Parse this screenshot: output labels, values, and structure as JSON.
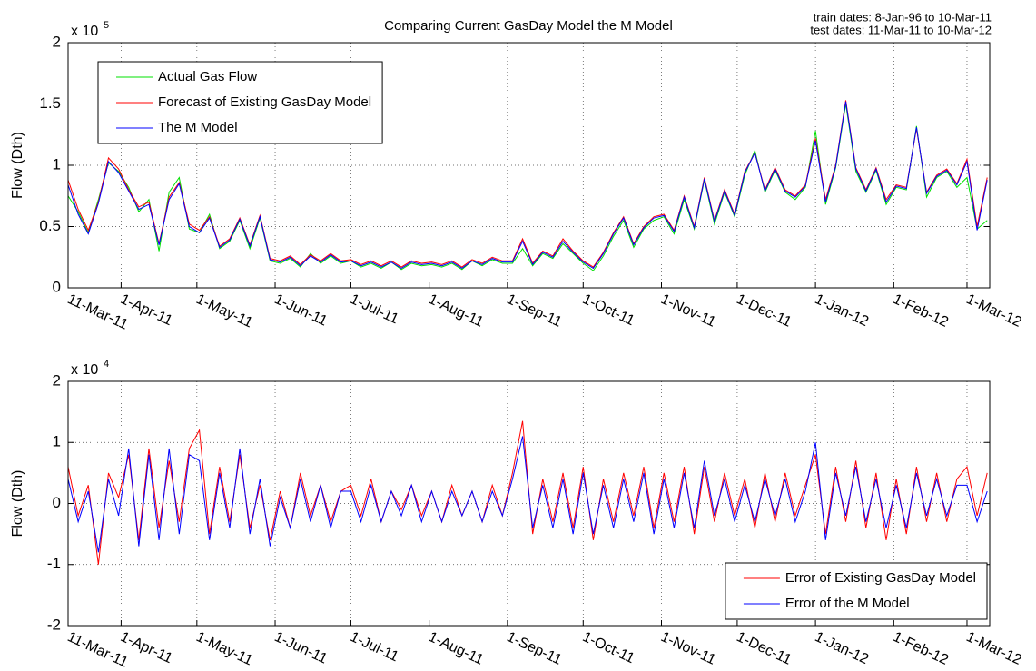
{
  "chart_data": [
    {
      "type": "line",
      "title": "Comparing Current GasDay Model the M Model",
      "annotations": [
        "train dates:   8-Jan-96 to 10-Mar-11",
        "test dates:   11-Mar-11 to 10-Mar-12"
      ],
      "y_label": "Flow (Dth)",
      "y_multiplier": {
        "base": "x 10",
        "exponent": "5"
      },
      "x": [
        "11-Mar-11",
        "15-Mar-11",
        "19-Mar-11",
        "23-Mar-11",
        "27-Mar-11",
        "31-Mar-11",
        "4-Apr-11",
        "8-Apr-11",
        "12-Apr-11",
        "16-Apr-11",
        "20-Apr-11",
        "24-Apr-11",
        "28-Apr-11",
        "2-May-11",
        "6-May-11",
        "10-May-11",
        "14-May-11",
        "18-May-11",
        "22-May-11",
        "26-May-11",
        "30-May-11",
        "3-Jun-11",
        "7-Jun-11",
        "11-Jun-11",
        "15-Jun-11",
        "19-Jun-11",
        "23-Jun-11",
        "27-Jun-11",
        "1-Jul-11",
        "5-Jul-11",
        "9-Jul-11",
        "13-Jul-11",
        "17-Jul-11",
        "21-Jul-11",
        "25-Jul-11",
        "29-Jul-11",
        "2-Aug-11",
        "6-Aug-11",
        "10-Aug-11",
        "14-Aug-11",
        "18-Aug-11",
        "22-Aug-11",
        "26-Aug-11",
        "30-Aug-11",
        "3-Sep-11",
        "7-Sep-11",
        "11-Sep-11",
        "15-Sep-11",
        "19-Sep-11",
        "23-Sep-11",
        "27-Sep-11",
        "1-Oct-11",
        "5-Oct-11",
        "9-Oct-11",
        "13-Oct-11",
        "17-Oct-11",
        "21-Oct-11",
        "25-Oct-11",
        "29-Oct-11",
        "2-Nov-11",
        "6-Nov-11",
        "10-Nov-11",
        "14-Nov-11",
        "18-Nov-11",
        "22-Nov-11",
        "26-Nov-11",
        "30-Nov-11",
        "4-Dec-11",
        "8-Dec-11",
        "12-Dec-11",
        "16-Dec-11",
        "20-Dec-11",
        "24-Dec-11",
        "28-Dec-11",
        "1-Jan-12",
        "5-Jan-12",
        "9-Jan-12",
        "13-Jan-12",
        "17-Jan-12",
        "21-Jan-12",
        "25-Jan-12",
        "29-Jan-12",
        "2-Feb-12",
        "6-Feb-12",
        "10-Feb-12",
        "14-Feb-12",
        "18-Feb-12",
        "22-Feb-12",
        "26-Feb-12",
        "1-Mar-12",
        "5-Mar-12",
        "9-Mar-12"
      ],
      "series": [
        {
          "name": "Actual Gas Flow",
          "color": "#00e000",
          "values": [
            0.75,
            0.62,
            0.45,
            0.72,
            1.02,
            0.95,
            0.82,
            0.62,
            0.72,
            0.3,
            0.78,
            0.9,
            0.48,
            0.45,
            0.6,
            0.32,
            0.38,
            0.55,
            0.32,
            0.57,
            0.22,
            0.2,
            0.24,
            0.17,
            0.28,
            0.2,
            0.26,
            0.2,
            0.22,
            0.17,
            0.2,
            0.16,
            0.21,
            0.15,
            0.2,
            0.18,
            0.19,
            0.17,
            0.2,
            0.15,
            0.22,
            0.18,
            0.23,
            0.2,
            0.2,
            0.32,
            0.18,
            0.28,
            0.24,
            0.36,
            0.28,
            0.2,
            0.14,
            0.26,
            0.42,
            0.55,
            0.33,
            0.48,
            0.55,
            0.58,
            0.44,
            0.72,
            0.48,
            0.88,
            0.52,
            0.78,
            0.58,
            0.92,
            1.12,
            0.78,
            0.96,
            0.78,
            0.72,
            0.82,
            1.28,
            0.68,
            0.98,
            1.5,
            0.95,
            0.78,
            0.96,
            0.68,
            0.82,
            0.8,
            1.32,
            0.74,
            0.9,
            0.95,
            0.82,
            0.9,
            0.48,
            0.55
          ]
        },
        {
          "name": "Forecast of Existing GasDay Model",
          "color": "#ff0000",
          "values": [
            0.88,
            0.64,
            0.47,
            0.7,
            1.06,
            0.97,
            0.8,
            0.66,
            0.7,
            0.36,
            0.74,
            0.86,
            0.52,
            0.47,
            0.58,
            0.34,
            0.4,
            0.57,
            0.35,
            0.59,
            0.24,
            0.22,
            0.26,
            0.19,
            0.27,
            0.22,
            0.28,
            0.22,
            0.23,
            0.19,
            0.22,
            0.18,
            0.22,
            0.17,
            0.22,
            0.2,
            0.21,
            0.19,
            0.22,
            0.17,
            0.23,
            0.2,
            0.25,
            0.22,
            0.22,
            0.4,
            0.2,
            0.3,
            0.26,
            0.4,
            0.3,
            0.22,
            0.17,
            0.29,
            0.45,
            0.58,
            0.36,
            0.5,
            0.58,
            0.6,
            0.47,
            0.75,
            0.5,
            0.9,
            0.55,
            0.8,
            0.6,
            0.95,
            1.1,
            0.8,
            0.98,
            0.8,
            0.75,
            0.84,
            1.22,
            0.72,
            1.0,
            1.53,
            0.98,
            0.8,
            0.98,
            0.72,
            0.84,
            0.82,
            1.3,
            0.78,
            0.92,
            0.97,
            0.85,
            1.05,
            0.5,
            0.9
          ]
        },
        {
          "name": "The M Model",
          "color": "#0000ff",
          "values": [
            0.84,
            0.6,
            0.44,
            0.69,
            1.03,
            0.94,
            0.79,
            0.64,
            0.68,
            0.35,
            0.72,
            0.85,
            0.5,
            0.45,
            0.57,
            0.33,
            0.39,
            0.56,
            0.34,
            0.58,
            0.23,
            0.21,
            0.25,
            0.18,
            0.26,
            0.21,
            0.27,
            0.21,
            0.22,
            0.18,
            0.21,
            0.17,
            0.21,
            0.16,
            0.21,
            0.19,
            0.2,
            0.18,
            0.21,
            0.16,
            0.22,
            0.19,
            0.24,
            0.21,
            0.21,
            0.38,
            0.19,
            0.29,
            0.25,
            0.38,
            0.29,
            0.21,
            0.16,
            0.28,
            0.44,
            0.57,
            0.35,
            0.49,
            0.57,
            0.59,
            0.46,
            0.74,
            0.49,
            0.89,
            0.54,
            0.79,
            0.59,
            0.94,
            1.1,
            0.79,
            0.97,
            0.79,
            0.74,
            0.83,
            1.2,
            0.7,
            0.99,
            1.52,
            0.97,
            0.79,
            0.97,
            0.7,
            0.83,
            0.81,
            1.31,
            0.77,
            0.91,
            0.96,
            0.84,
            1.03,
            0.47,
            0.88
          ]
        }
      ],
      "xlim": [
        "11-Mar-11",
        "10-Mar-12"
      ],
      "xticks": [
        "11-Mar-11",
        "1-Apr-11",
        "1-May-11",
        "1-Jun-11",
        "1-Jul-11",
        "1-Aug-11",
        "1-Sep-11",
        "1-Oct-11",
        "1-Nov-11",
        "1-Dec-11",
        "1-Jan-12",
        "1-Feb-12",
        "1-Mar-12"
      ],
      "ylim": [
        0,
        2
      ],
      "yticks": [
        0,
        0.5,
        1,
        1.5,
        2
      ],
      "grid": true,
      "legend": "upper left"
    },
    {
      "type": "line",
      "y_label": "Flow (Dth)",
      "y_multiplier": {
        "base": "x 10",
        "exponent": "4"
      },
      "x": [
        "11-Mar-11",
        "15-Mar-11",
        "19-Mar-11",
        "23-Mar-11",
        "27-Mar-11",
        "31-Mar-11",
        "4-Apr-11",
        "8-Apr-11",
        "12-Apr-11",
        "16-Apr-11",
        "20-Apr-11",
        "24-Apr-11",
        "28-Apr-11",
        "2-May-11",
        "6-May-11",
        "10-May-11",
        "14-May-11",
        "18-May-11",
        "22-May-11",
        "26-May-11",
        "30-May-11",
        "3-Jun-11",
        "7-Jun-11",
        "11-Jun-11",
        "15-Jun-11",
        "19-Jun-11",
        "23-Jun-11",
        "27-Jun-11",
        "1-Jul-11",
        "5-Jul-11",
        "9-Jul-11",
        "13-Jul-11",
        "17-Jul-11",
        "21-Jul-11",
        "25-Jul-11",
        "29-Jul-11",
        "2-Aug-11",
        "6-Aug-11",
        "10-Aug-11",
        "14-Aug-11",
        "18-Aug-11",
        "22-Aug-11",
        "26-Aug-11",
        "30-Aug-11",
        "3-Sep-11",
        "7-Sep-11",
        "11-Sep-11",
        "15-Sep-11",
        "19-Sep-11",
        "23-Sep-11",
        "27-Sep-11",
        "1-Oct-11",
        "5-Oct-11",
        "9-Oct-11",
        "13-Oct-11",
        "17-Oct-11",
        "21-Oct-11",
        "25-Oct-11",
        "29-Oct-11",
        "2-Nov-11",
        "6-Nov-11",
        "10-Nov-11",
        "14-Nov-11",
        "18-Nov-11",
        "22-Nov-11",
        "26-Nov-11",
        "30-Nov-11",
        "4-Dec-11",
        "8-Dec-11",
        "12-Dec-11",
        "16-Dec-11",
        "20-Dec-11",
        "24-Dec-11",
        "28-Dec-11",
        "1-Jan-12",
        "5-Jan-12",
        "9-Jan-12",
        "13-Jan-12",
        "17-Jan-12",
        "21-Jan-12",
        "25-Jan-12",
        "29-Jan-12",
        "2-Feb-12",
        "6-Feb-12",
        "10-Feb-12",
        "14-Feb-12",
        "18-Feb-12",
        "22-Feb-12",
        "26-Feb-12",
        "1-Mar-12",
        "5-Mar-12",
        "9-Mar-12"
      ],
      "series": [
        {
          "name": "Error of Existing GasDay Model",
          "color": "#ff0000",
          "values": [
            0.6,
            -0.2,
            0.3,
            -1.0,
            0.5,
            0.1,
            0.8,
            -0.6,
            0.9,
            -0.4,
            0.7,
            -0.3,
            0.9,
            1.2,
            -0.5,
            0.6,
            -0.3,
            0.8,
            -0.4,
            0.3,
            -0.6,
            0.2,
            -0.4,
            0.5,
            -0.2,
            0.3,
            -0.3,
            0.2,
            0.3,
            -0.2,
            0.4,
            -0.3,
            0.2,
            -0.1,
            0.3,
            -0.2,
            0.2,
            -0.3,
            0.3,
            -0.2,
            0.2,
            -0.3,
            0.3,
            -0.2,
            0.5,
            1.35,
            -0.5,
            0.4,
            -0.3,
            0.5,
            -0.4,
            0.6,
            -0.6,
            0.4,
            -0.3,
            0.5,
            -0.2,
            0.6,
            -0.4,
            0.5,
            -0.3,
            0.6,
            -0.5,
            0.6,
            -0.3,
            0.5,
            -0.2,
            0.4,
            -0.4,
            0.5,
            -0.3,
            0.5,
            -0.2,
            0.3,
            0.8,
            -0.5,
            0.6,
            -0.3,
            0.7,
            -0.4,
            0.5,
            -0.6,
            0.4,
            -0.5,
            0.6,
            -0.3,
            0.5,
            -0.3,
            0.4,
            0.6,
            -0.2,
            0.5
          ]
        },
        {
          "name": "Error of the M Model",
          "color": "#0000ff",
          "values": [
            0.4,
            -0.3,
            0.2,
            -0.8,
            0.4,
            -0.2,
            0.9,
            -0.7,
            0.8,
            -0.6,
            0.9,
            -0.5,
            0.8,
            0.7,
            -0.6,
            0.5,
            -0.4,
            0.9,
            -0.5,
            0.4,
            -0.7,
            0.1,
            -0.4,
            0.4,
            -0.3,
            0.3,
            -0.4,
            0.2,
            0.2,
            -0.3,
            0.3,
            -0.3,
            0.2,
            -0.2,
            0.3,
            -0.3,
            0.2,
            -0.3,
            0.2,
            -0.2,
            0.2,
            -0.3,
            0.2,
            -0.2,
            0.4,
            1.1,
            -0.4,
            0.3,
            -0.4,
            0.4,
            -0.5,
            0.5,
            -0.5,
            0.3,
            -0.4,
            0.4,
            -0.3,
            0.5,
            -0.5,
            0.4,
            -0.4,
            0.5,
            -0.4,
            0.7,
            -0.2,
            0.4,
            -0.3,
            0.3,
            -0.3,
            0.4,
            -0.2,
            0.4,
            -0.3,
            0.2,
            1.0,
            -0.6,
            0.5,
            -0.2,
            0.6,
            -0.3,
            0.4,
            -0.4,
            0.3,
            -0.4,
            0.5,
            -0.2,
            0.4,
            -0.2,
            0.3,
            0.3,
            -0.3,
            0.2
          ]
        }
      ],
      "xlim": [
        "11-Mar-11",
        "10-Mar-12"
      ],
      "xticks": [
        "11-Mar-11",
        "1-Apr-11",
        "1-May-11",
        "1-Jun-11",
        "1-Jul-11",
        "1-Aug-11",
        "1-Sep-11",
        "1-Oct-11",
        "1-Nov-11",
        "1-Dec-11",
        "1-Jan-12",
        "1-Feb-12",
        "1-Mar-12"
      ],
      "ylim": [
        -2,
        2
      ],
      "yticks": [
        -2,
        -1,
        0,
        1,
        2
      ],
      "grid": true,
      "legend": "lower right"
    }
  ]
}
